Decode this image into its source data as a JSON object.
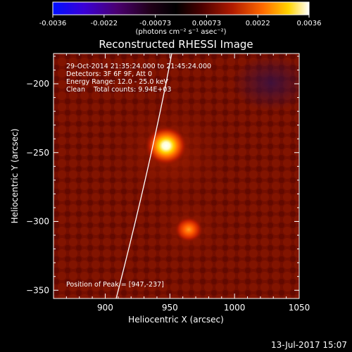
{
  "colorbar": {
    "tick_labels": [
      "-0.0036",
      "-0.0022",
      "-0.00073",
      "0.00073",
      "0.0022",
      "0.0036"
    ],
    "unit_label": "(photons cm⁻² s⁻¹ asec⁻²)"
  },
  "title": "Reconstructed RHESSI Image",
  "info": {
    "line1": "29-Oct-2014 21:35:24.000 to 21:45:24.000",
    "line2": "Detectors: 3F 6F 9F, Att 0",
    "line3": "Energy Range: 12.0 - 25.0 keV",
    "line4": "Clean    Total counts: 9.94E+03",
    "peak": "Position of Peak = [947,-237]"
  },
  "axes": {
    "xlabel": "Heliocentric X (arcsec)",
    "ylabel": "Heliocentric Y (arcsec)",
    "xticks": [
      "900",
      "950",
      "1000",
      "1050"
    ],
    "yticks": [
      "-200",
      "-250",
      "-300",
      "-350"
    ]
  },
  "footer": {
    "timestamp": "13-Jul-2017 15:07"
  },
  "colors": {
    "background": "#000000",
    "limb": "#ffffff",
    "colormap": [
      "#0000ff",
      "#5a00b0",
      "#200020",
      "#000000",
      "#5a0000",
      "#b01800",
      "#ff7a00",
      "#ffe000",
      "#ffffff"
    ]
  },
  "image_data": {
    "x_range": [
      860,
      1050
    ],
    "y_range": [
      -356,
      -178
    ],
    "sources": [
      {
        "x": 947,
        "y": -237,
        "label": "main-source"
      },
      {
        "x": 964,
        "y": -302,
        "label": "secondary-source"
      }
    ]
  }
}
